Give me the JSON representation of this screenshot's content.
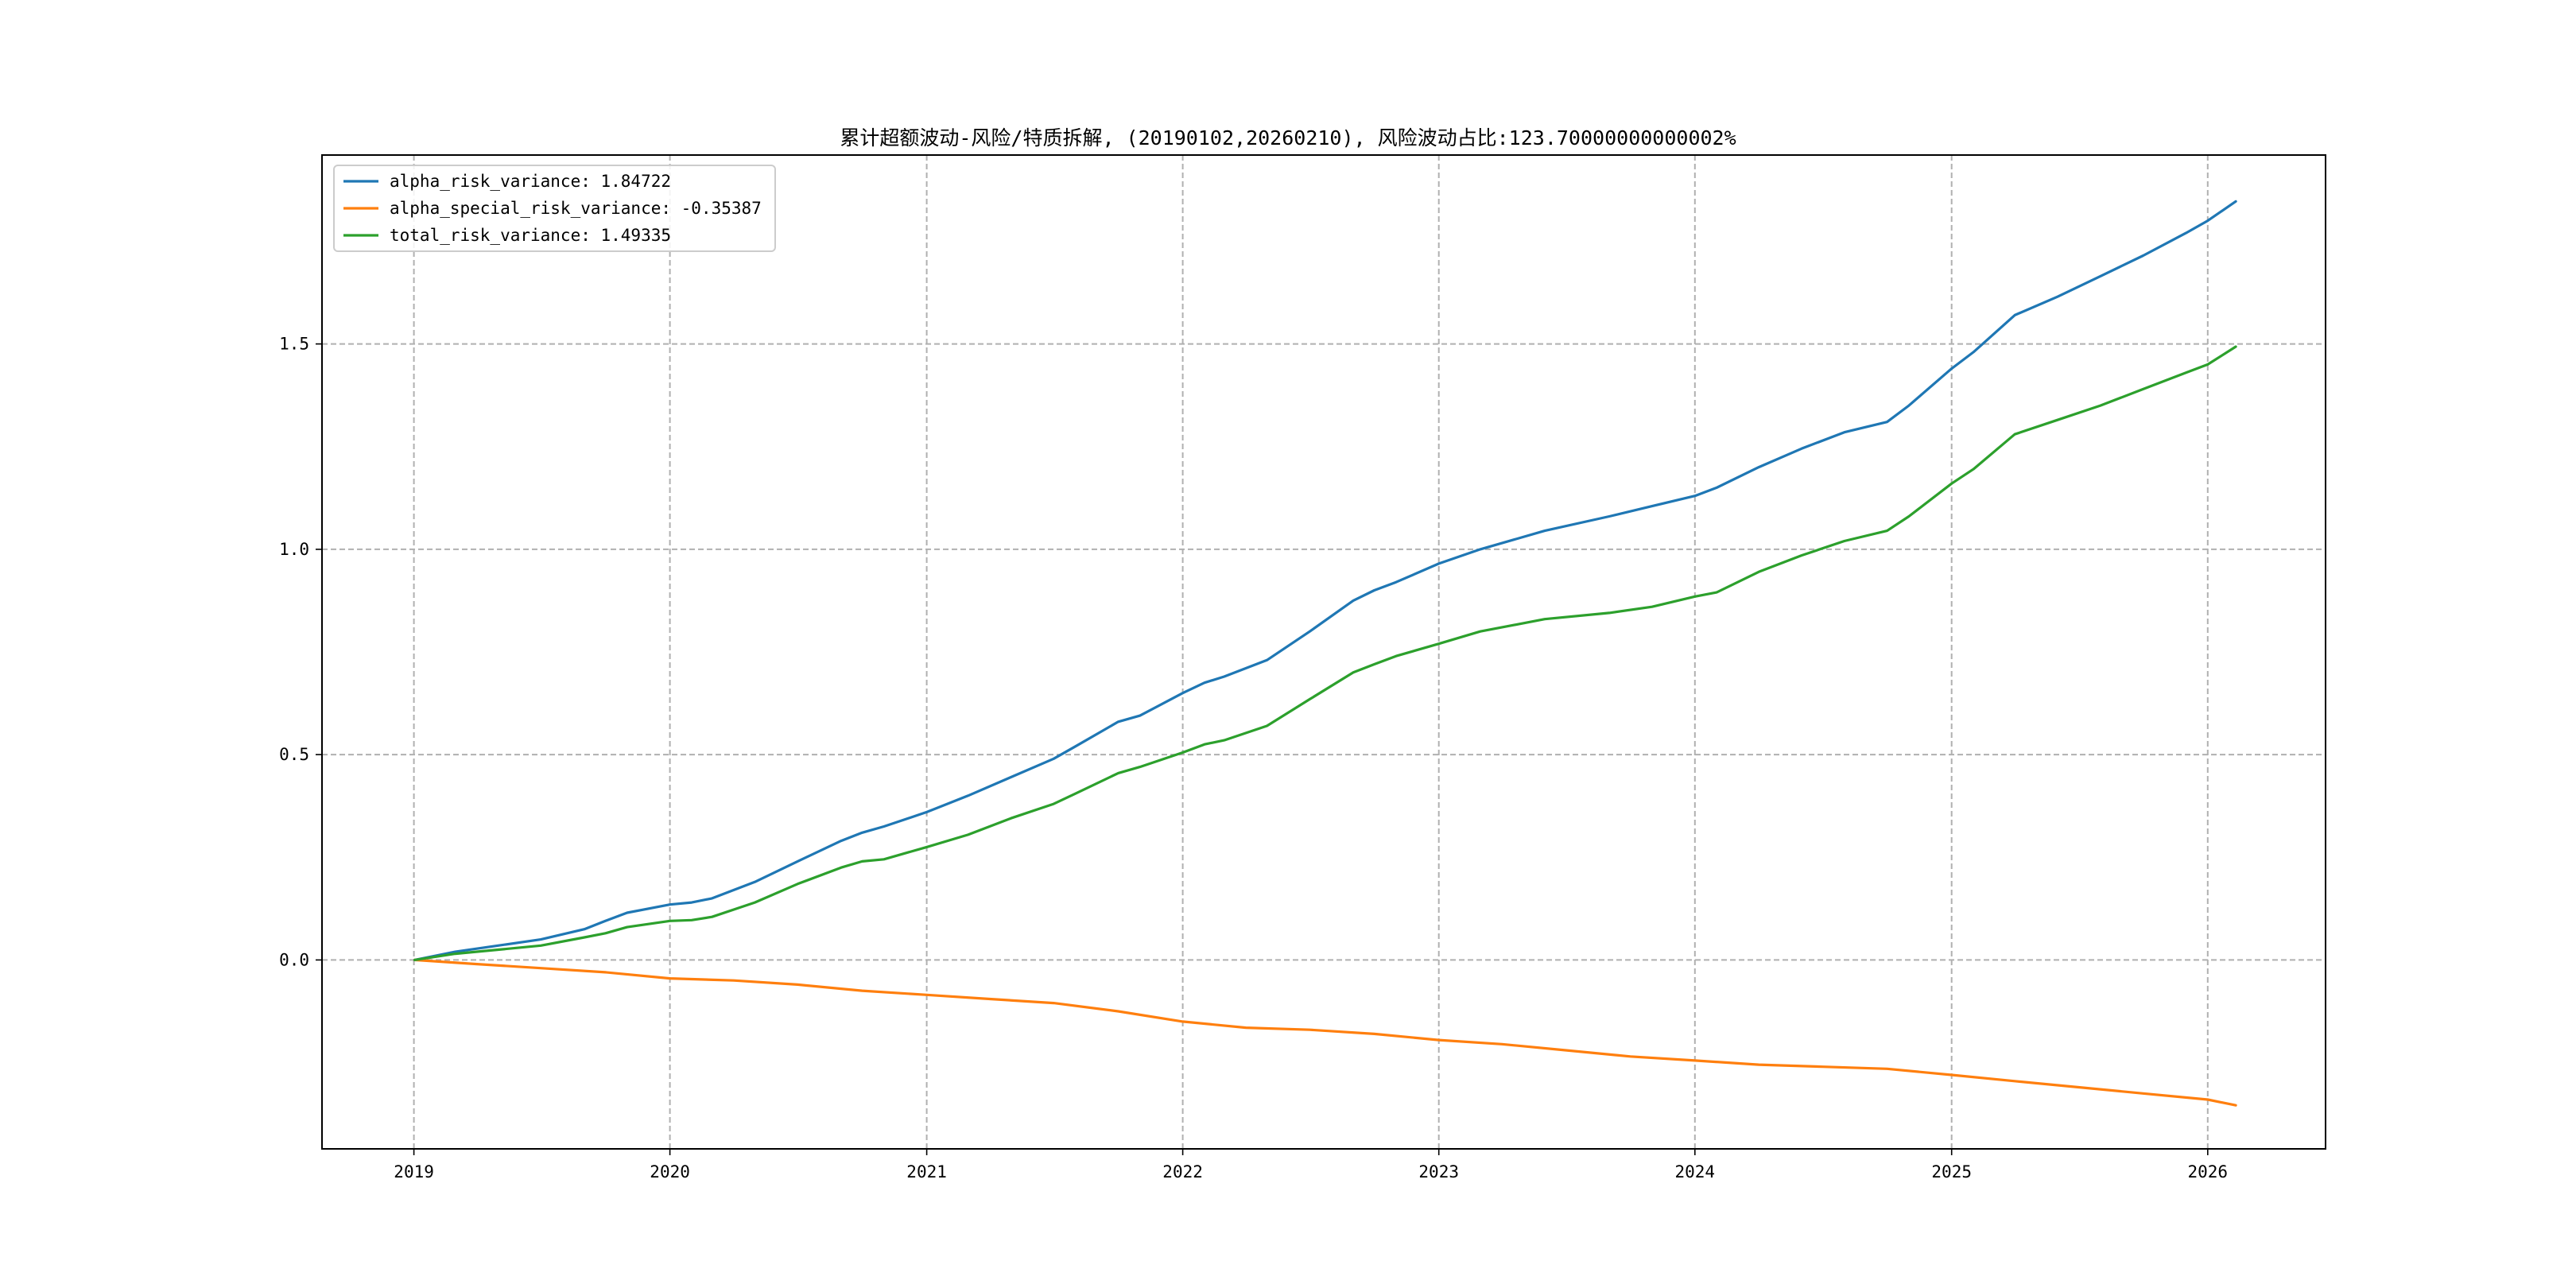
{
  "chart_data": {
    "type": "line",
    "title": "累计超额波动-风险/特质拆解, (20190102,20260210), 风险波动占比:123.70000000000002%",
    "xlabel": "",
    "ylabel": "",
    "xlim": [
      "2018-08-23",
      "2026-06-18"
    ],
    "ylim": [
      -0.46,
      1.96
    ],
    "x_ticks": [
      {
        "value": "2019-01-01",
        "label": "2019"
      },
      {
        "value": "2020-01-01",
        "label": "2020"
      },
      {
        "value": "2021-01-01",
        "label": "2021"
      },
      {
        "value": "2022-01-01",
        "label": "2022"
      },
      {
        "value": "2023-01-01",
        "label": "2023"
      },
      {
        "value": "2024-01-01",
        "label": "2024"
      },
      {
        "value": "2025-01-01",
        "label": "2025"
      },
      {
        "value": "2026-01-01",
        "label": "2026"
      }
    ],
    "y_ticks": [
      {
        "value": 0.0,
        "label": "0.0"
      },
      {
        "value": 0.5,
        "label": "0.5"
      },
      {
        "value": 1.0,
        "label": "1.0"
      },
      {
        "value": 1.5,
        "label": "1.5"
      }
    ],
    "grid": true,
    "legend_position": "upper-left",
    "series": [
      {
        "name": "alpha_risk_variance: 1.84722",
        "color": "#1f77b4",
        "points": [
          [
            "2019-01-02",
            0.0
          ],
          [
            "2019-03-01",
            0.02
          ],
          [
            "2019-05-01",
            0.035
          ],
          [
            "2019-07-01",
            0.05
          ],
          [
            "2019-09-01",
            0.075
          ],
          [
            "2019-10-01",
            0.095
          ],
          [
            "2019-11-01",
            0.115
          ],
          [
            "2020-01-01",
            0.135
          ],
          [
            "2020-02-01",
            0.14
          ],
          [
            "2020-03-01",
            0.15
          ],
          [
            "2020-05-01",
            0.19
          ],
          [
            "2020-07-01",
            0.24
          ],
          [
            "2020-09-01",
            0.29
          ],
          [
            "2020-10-01",
            0.31
          ],
          [
            "2020-11-01",
            0.325
          ],
          [
            "2021-01-01",
            0.36
          ],
          [
            "2021-03-01",
            0.4
          ],
          [
            "2021-05-01",
            0.445
          ],
          [
            "2021-07-01",
            0.49
          ],
          [
            "2021-08-01",
            0.52
          ],
          [
            "2021-10-01",
            0.58
          ],
          [
            "2021-11-01",
            0.595
          ],
          [
            "2022-01-01",
            0.65
          ],
          [
            "2022-02-01",
            0.675
          ],
          [
            "2022-03-01",
            0.69
          ],
          [
            "2022-05-01",
            0.73
          ],
          [
            "2022-07-01",
            0.8
          ],
          [
            "2022-09-01",
            0.875
          ],
          [
            "2022-10-01",
            0.9
          ],
          [
            "2022-11-01",
            0.92
          ],
          [
            "2023-01-01",
            0.965
          ],
          [
            "2023-03-01",
            1.0
          ],
          [
            "2023-06-01",
            1.045
          ],
          [
            "2023-09-01",
            1.08
          ],
          [
            "2023-11-01",
            1.105
          ],
          [
            "2024-01-01",
            1.13
          ],
          [
            "2024-02-01",
            1.15
          ],
          [
            "2024-04-01",
            1.2
          ],
          [
            "2024-06-01",
            1.245
          ],
          [
            "2024-08-01",
            1.285
          ],
          [
            "2024-10-01",
            1.31
          ],
          [
            "2024-11-01",
            1.35
          ],
          [
            "2025-01-01",
            1.44
          ],
          [
            "2025-02-01",
            1.48
          ],
          [
            "2025-04-01",
            1.57
          ],
          [
            "2025-06-01",
            1.615
          ],
          [
            "2025-08-01",
            1.665
          ],
          [
            "2025-10-01",
            1.715
          ],
          [
            "2025-12-01",
            1.77
          ],
          [
            "2026-01-01",
            1.8
          ],
          [
            "2026-02-10",
            1.84722
          ]
        ]
      },
      {
        "name": "alpha_special_risk_variance: -0.35387",
        "color": "#ff7f0e",
        "points": [
          [
            "2019-01-02",
            0.0
          ],
          [
            "2019-04-01",
            -0.01
          ],
          [
            "2019-07-01",
            -0.02
          ],
          [
            "2019-10-01",
            -0.03
          ],
          [
            "2020-01-01",
            -0.045
          ],
          [
            "2020-04-01",
            -0.05
          ],
          [
            "2020-07-01",
            -0.06
          ],
          [
            "2020-10-01",
            -0.075
          ],
          [
            "2021-01-01",
            -0.085
          ],
          [
            "2021-04-01",
            -0.095
          ],
          [
            "2021-07-01",
            -0.105
          ],
          [
            "2021-10-01",
            -0.125
          ],
          [
            "2022-01-01",
            -0.15
          ],
          [
            "2022-04-01",
            -0.165
          ],
          [
            "2022-07-01",
            -0.17
          ],
          [
            "2022-10-01",
            -0.18
          ],
          [
            "2023-01-01",
            -0.195
          ],
          [
            "2023-04-01",
            -0.205
          ],
          [
            "2023-07-01",
            -0.22
          ],
          [
            "2023-10-01",
            -0.235
          ],
          [
            "2024-01-01",
            -0.245
          ],
          [
            "2024-04-01",
            -0.255
          ],
          [
            "2024-07-01",
            -0.26
          ],
          [
            "2024-10-01",
            -0.265
          ],
          [
            "2025-01-01",
            -0.28
          ],
          [
            "2025-04-01",
            -0.295
          ],
          [
            "2025-07-01",
            -0.31
          ],
          [
            "2025-10-01",
            -0.325
          ],
          [
            "2026-01-01",
            -0.34
          ],
          [
            "2026-02-10",
            -0.35387
          ]
        ]
      },
      {
        "name": "total_risk_variance: 1.49335",
        "color": "#2ca02c",
        "points": [
          [
            "2019-01-02",
            0.0
          ],
          [
            "2019-03-01",
            0.015
          ],
          [
            "2019-05-01",
            0.025
          ],
          [
            "2019-07-01",
            0.035
          ],
          [
            "2019-09-01",
            0.055
          ],
          [
            "2019-10-01",
            0.065
          ],
          [
            "2019-11-01",
            0.08
          ],
          [
            "2020-01-01",
            0.095
          ],
          [
            "2020-02-01",
            0.097
          ],
          [
            "2020-03-01",
            0.105
          ],
          [
            "2020-05-01",
            0.14
          ],
          [
            "2020-07-01",
            0.185
          ],
          [
            "2020-09-01",
            0.225
          ],
          [
            "2020-10-01",
            0.24
          ],
          [
            "2020-11-01",
            0.245
          ],
          [
            "2021-01-01",
            0.275
          ],
          [
            "2021-03-01",
            0.305
          ],
          [
            "2021-05-01",
            0.345
          ],
          [
            "2021-07-01",
            0.38
          ],
          [
            "2021-08-01",
            0.405
          ],
          [
            "2021-10-01",
            0.455
          ],
          [
            "2021-11-01",
            0.47
          ],
          [
            "2022-01-01",
            0.505
          ],
          [
            "2022-02-01",
            0.525
          ],
          [
            "2022-03-01",
            0.535
          ],
          [
            "2022-05-01",
            0.57
          ],
          [
            "2022-07-01",
            0.635
          ],
          [
            "2022-09-01",
            0.7
          ],
          [
            "2022-10-01",
            0.72
          ],
          [
            "2022-11-01",
            0.74
          ],
          [
            "2023-01-01",
            0.77
          ],
          [
            "2023-03-01",
            0.8
          ],
          [
            "2023-06-01",
            0.83
          ],
          [
            "2023-09-01",
            0.845
          ],
          [
            "2023-11-01",
            0.86
          ],
          [
            "2024-01-01",
            0.885
          ],
          [
            "2024-02-01",
            0.895
          ],
          [
            "2024-04-01",
            0.945
          ],
          [
            "2024-06-01",
            0.985
          ],
          [
            "2024-08-01",
            1.02
          ],
          [
            "2024-10-01",
            1.045
          ],
          [
            "2024-11-01",
            1.08
          ],
          [
            "2025-01-01",
            1.16
          ],
          [
            "2025-02-01",
            1.195
          ],
          [
            "2025-04-01",
            1.28
          ],
          [
            "2025-06-01",
            1.315
          ],
          [
            "2025-08-01",
            1.35
          ],
          [
            "2025-10-01",
            1.39
          ],
          [
            "2025-12-01",
            1.43
          ],
          [
            "2026-01-01",
            1.45
          ],
          [
            "2026-02-10",
            1.49335
          ]
        ]
      }
    ]
  }
}
